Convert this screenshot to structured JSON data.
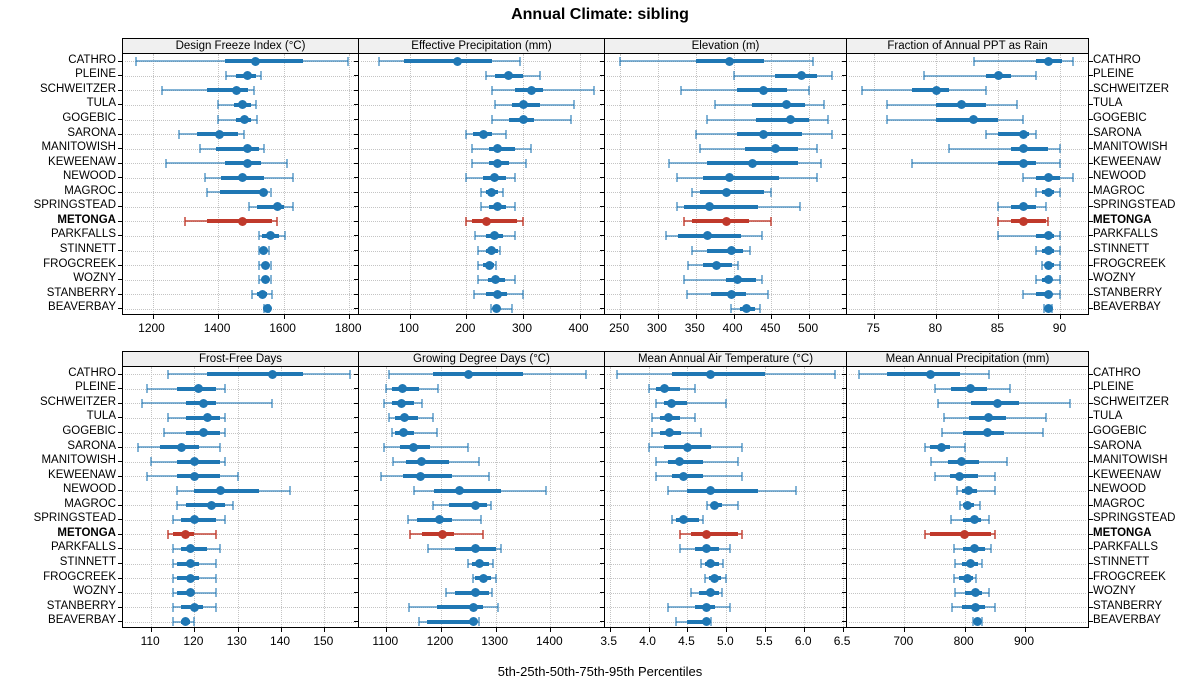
{
  "title": "Annual Climate: sibling",
  "footer": "5th-25th-50th-75th-95th Percentiles",
  "colors": {
    "normal": "#1f77b4",
    "normal_light": "rgba(31,119,180,0.55)",
    "highlight": "#c0392b",
    "highlight_light": "rgba(192,57,43,0.7)",
    "header_bg": "#f0f0f0",
    "grid": "#c4c4c4",
    "border": "#000000"
  },
  "highlight_site": "METONGA",
  "sites": [
    "CATHRO",
    "PLEINE",
    "SCHWEITZER",
    "TULA",
    "GOGEBIC",
    "SARONA",
    "MANITOWISH",
    "KEWEENAW",
    "NEWOOD",
    "MAGROC",
    "SPRINGSTEAD",
    "METONGA",
    "PARKFALLS",
    "STINNETT",
    "FROGCREEK",
    "WOZNY",
    "STANBERRY",
    "BEAVERBAY"
  ],
  "chart_data": [
    {
      "type": "dot-interval",
      "title": "Design Freeze Index (°C)",
      "xlim": [
        1110,
        1830
      ],
      "ticks": [
        {
          "v": 1200,
          "label": "1200"
        },
        {
          "v": 1400,
          "label": "1400"
        },
        {
          "v": 1600,
          "label": "1600"
        },
        {
          "v": 1800,
          "label": "1800"
        }
      ],
      "percentiles": [
        5,
        25,
        50,
        75,
        95
      ],
      "values": [
        [
          1150,
          1420,
          1515,
          1660,
          1795
        ],
        [
          1425,
          1455,
          1490,
          1515,
          1530
        ],
        [
          1230,
          1365,
          1455,
          1490,
          1510
        ],
        [
          1400,
          1450,
          1475,
          1500,
          1515
        ],
        [
          1400,
          1455,
          1480,
          1500,
          1520
        ],
        [
          1280,
          1335,
          1405,
          1460,
          1480
        ],
        [
          1345,
          1395,
          1490,
          1525,
          1540
        ],
        [
          1240,
          1420,
          1490,
          1530,
          1610
        ],
        [
          1360,
          1410,
          1475,
          1540,
          1630
        ],
        [
          1365,
          1405,
          1540,
          1550,
          1560
        ],
        [
          1495,
          1520,
          1580,
          1600,
          1630
        ],
        [
          1300,
          1365,
          1475,
          1565,
          1580
        ],
        [
          1525,
          1535,
          1560,
          1585,
          1605
        ],
        [
          1525,
          1535,
          1540,
          1550,
          1555
        ],
        [
          1525,
          1535,
          1545,
          1550,
          1560
        ],
        [
          1525,
          1535,
          1545,
          1550,
          1560
        ],
        [
          1505,
          1520,
          1535,
          1550,
          1565
        ],
        [
          1540,
          1545,
          1550,
          1553,
          1556
        ]
      ]
    },
    {
      "type": "dot-interval",
      "title": "Effective Precipitation (mm)",
      "xlim": [
        10,
        445
      ],
      "ticks": [
        {
          "v": 100,
          "label": "100"
        },
        {
          "v": 200,
          "label": "200"
        },
        {
          "v": 300,
          "label": "300"
        },
        {
          "v": 400,
          "label": "400"
        }
      ],
      "percentiles": [
        5,
        25,
        50,
        75,
        95
      ],
      "values": [
        [
          45,
          90,
          185,
          245,
          295
        ],
        [
          235,
          250,
          275,
          300,
          330
        ],
        [
          245,
          285,
          315,
          335,
          425
        ],
        [
          250,
          280,
          300,
          330,
          390
        ],
        [
          245,
          275,
          300,
          320,
          385
        ],
        [
          200,
          212,
          230,
          245,
          270
        ],
        [
          210,
          240,
          255,
          285,
          315
        ],
        [
          210,
          240,
          255,
          275,
          305
        ],
        [
          200,
          230,
          250,
          270,
          285
        ],
        [
          225,
          235,
          245,
          255,
          265
        ],
        [
          225,
          240,
          255,
          270,
          285
        ],
        [
          200,
          210,
          235,
          290,
          300
        ],
        [
          215,
          235,
          250,
          265,
          285
        ],
        [
          220,
          235,
          245,
          255,
          260
        ],
        [
          220,
          230,
          240,
          248,
          252
        ],
        [
          220,
          238,
          252,
          268,
          285
        ],
        [
          213,
          235,
          255,
          272,
          300
        ],
        [
          243,
          248,
          253,
          260,
          280
        ]
      ]
    },
    {
      "type": "dot-interval",
      "title": "Elevation (m)",
      "xlim": [
        230,
        550
      ],
      "ticks": [
        {
          "v": 250,
          "label": "250"
        },
        {
          "v": 300,
          "label": "300"
        },
        {
          "v": 350,
          "label": "350"
        },
        {
          "v": 400,
          "label": "400"
        },
        {
          "v": 450,
          "label": "450"
        },
        {
          "v": 500,
          "label": "500"
        }
      ],
      "percentiles": [
        5,
        25,
        50,
        75,
        95
      ],
      "values": [
        [
          250,
          350,
          395,
          440,
          505
        ],
        [
          400,
          455,
          490,
          510,
          530
        ],
        [
          330,
          405,
          440,
          470,
          500
        ],
        [
          375,
          425,
          470,
          495,
          520
        ],
        [
          365,
          430,
          475,
          500,
          525
        ],
        [
          350,
          405,
          440,
          490,
          530
        ],
        [
          355,
          415,
          455,
          485,
          510
        ],
        [
          315,
          365,
          425,
          485,
          515
        ],
        [
          325,
          360,
          395,
          460,
          510
        ],
        [
          345,
          355,
          390,
          440,
          450
        ],
        [
          325,
          335,
          368,
          432,
          488
        ],
        [
          335,
          345,
          390,
          420,
          450
        ],
        [
          310,
          327,
          366,
          410,
          437
        ],
        [
          345,
          365,
          397,
          412,
          422
        ],
        [
          340,
          360,
          378,
          398,
          406
        ],
        [
          335,
          390,
          405,
          430,
          438
        ],
        [
          338,
          370,
          397,
          416,
          445
        ],
        [
          397,
          408,
          417,
          428,
          435
        ]
      ]
    },
    {
      "type": "dot-interval",
      "title": "Fraction of Annual PPT as Rain",
      "xlim": [
        72.8,
        92.3
      ],
      "ticks": [
        {
          "v": 75,
          "label": "75"
        },
        {
          "v": 80,
          "label": "80"
        },
        {
          "v": 85,
          "label": "85"
        },
        {
          "v": 90,
          "label": "90"
        }
      ],
      "percentiles": [
        5,
        25,
        50,
        75,
        95
      ],
      "values": [
        [
          83,
          88,
          89,
          90.1,
          91
        ],
        [
          79,
          84,
          85,
          86,
          88
        ],
        [
          74,
          78,
          80,
          81,
          84
        ],
        [
          76,
          80,
          82,
          84,
          86.5
        ],
        [
          76,
          80,
          83,
          85,
          87
        ],
        [
          84,
          85,
          87,
          87.5,
          88
        ],
        [
          81,
          86,
          87,
          89,
          90
        ],
        [
          78,
          85,
          87,
          88,
          90
        ],
        [
          87,
          88,
          89,
          90,
          91
        ],
        [
          88,
          88.5,
          89,
          89.5,
          90
        ],
        [
          85,
          86,
          87,
          88,
          88.8
        ],
        [
          85,
          86,
          87,
          88.8,
          89
        ],
        [
          85,
          88,
          89,
          89.5,
          90
        ],
        [
          88,
          88.5,
          89,
          89.5,
          90
        ],
        [
          88.5,
          88.8,
          89,
          89.5,
          90
        ],
        [
          88,
          88.5,
          89,
          89.3,
          90
        ],
        [
          87,
          88,
          89,
          89.3,
          90
        ],
        [
          88.7,
          88.9,
          89,
          89.1,
          89.3
        ]
      ]
    },
    {
      "type": "dot-interval",
      "title": "Frost-Free Days",
      "xlim": [
        103.5,
        158
      ],
      "ticks": [
        {
          "v": 110,
          "label": "110"
        },
        {
          "v": 120,
          "label": "120"
        },
        {
          "v": 130,
          "label": "130"
        },
        {
          "v": 140,
          "label": "140"
        },
        {
          "v": 150,
          "label": "150"
        }
      ],
      "percentiles": [
        5,
        25,
        50,
        75,
        95
      ],
      "values": [
        [
          114,
          123,
          138,
          145,
          156
        ],
        [
          109,
          116,
          121,
          125,
          127
        ],
        [
          108,
          118,
          122,
          125,
          138
        ],
        [
          114,
          118,
          123,
          126,
          127
        ],
        [
          113,
          118,
          122,
          126,
          127
        ],
        [
          107,
          112,
          117,
          121,
          126
        ],
        [
          110,
          116,
          120,
          126,
          127
        ],
        [
          109,
          116,
          120,
          126,
          130
        ],
        [
          116,
          120,
          126,
          135,
          142
        ],
        [
          116,
          118,
          124,
          127,
          129
        ],
        [
          115,
          117,
          120,
          125,
          127
        ],
        [
          114,
          115,
          118,
          120,
          125
        ],
        [
          115,
          117,
          119,
          123,
          126
        ],
        [
          115,
          116,
          119,
          121,
          125
        ],
        [
          115,
          116,
          119,
          121,
          125
        ],
        [
          115,
          116,
          119,
          120,
          125
        ],
        [
          115,
          117,
          120,
          122,
          125
        ],
        [
          115,
          117,
          118,
          119,
          120
        ]
      ]
    },
    {
      "type": "dot-interval",
      "title": "Growing Degree Days (°C)",
      "xlim": [
        1050,
        1500
      ],
      "ticks": [
        {
          "v": 1100,
          "label": "1100"
        },
        {
          "v": 1200,
          "label": "1200"
        },
        {
          "v": 1300,
          "label": "1300"
        },
        {
          "v": 1400,
          "label": "1400"
        }
      ],
      "percentiles": [
        5,
        25,
        50,
        75,
        95
      ],
      "values": [
        [
          1105,
          1185,
          1250,
          1350,
          1465
        ],
        [
          1100,
          1110,
          1130,
          1160,
          1195
        ],
        [
          1095,
          1110,
          1128,
          1150,
          1165
        ],
        [
          1105,
          1115,
          1133,
          1158,
          1185
        ],
        [
          1110,
          1116,
          1132,
          1150,
          1193
        ],
        [
          1095,
          1125,
          1150,
          1180,
          1250
        ],
        [
          1112,
          1136,
          1165,
          1215,
          1270
        ],
        [
          1090,
          1130,
          1163,
          1220,
          1288
        ],
        [
          1150,
          1187,
          1233,
          1310,
          1392
        ],
        [
          1185,
          1215,
          1264,
          1285,
          1292
        ],
        [
          1140,
          1157,
          1197,
          1220,
          1273
        ],
        [
          1143,
          1166,
          1202,
          1223,
          1276
        ],
        [
          1176,
          1226,
          1263,
          1300,
          1310
        ],
        [
          1250,
          1257,
          1270,
          1287,
          1295
        ],
        [
          1258,
          1263,
          1278,
          1292,
          1300
        ],
        [
          1210,
          1226,
          1263,
          1288,
          1293
        ],
        [
          1142,
          1193,
          1260,
          1276,
          1304
        ],
        [
          1160,
          1175,
          1260,
          1265,
          1270
        ]
      ]
    },
    {
      "type": "dot-interval",
      "title": "Mean Annual Air Temperature (°C)",
      "xlim": [
        3.44,
        6.55
      ],
      "ticks": [
        {
          "v": 3.5,
          "label": "3.5"
        },
        {
          "v": 4.0,
          "label": "4.0"
        },
        {
          "v": 4.5,
          "label": "4.5"
        },
        {
          "v": 5.0,
          "label": "5.0"
        },
        {
          "v": 5.5,
          "label": "5.5"
        },
        {
          "v": 6.0,
          "label": "6.0"
        },
        {
          "v": 6.5,
          "label": "6.5"
        }
      ],
      "percentiles": [
        5,
        25,
        50,
        75,
        95
      ],
      "values": [
        [
          3.6,
          4.3,
          4.8,
          5.5,
          6.4
        ],
        [
          4.0,
          4.1,
          4.2,
          4.4,
          4.6
        ],
        [
          4.1,
          4.2,
          4.3,
          4.5,
          5.0
        ],
        [
          4.05,
          4.15,
          4.25,
          4.4,
          4.6
        ],
        [
          4.05,
          4.15,
          4.27,
          4.42,
          4.68
        ],
        [
          4.0,
          4.2,
          4.5,
          4.8,
          5.2
        ],
        [
          4.1,
          4.25,
          4.4,
          4.7,
          5.15
        ],
        [
          4.1,
          4.3,
          4.45,
          4.7,
          5.2
        ],
        [
          4.25,
          4.5,
          4.8,
          5.4,
          5.9
        ],
        [
          4.75,
          4.8,
          4.85,
          4.95,
          5.15
        ],
        [
          4.3,
          4.35,
          4.45,
          4.65,
          4.7
        ],
        [
          4.4,
          4.55,
          4.75,
          5.15,
          5.2
        ],
        [
          4.4,
          4.6,
          4.75,
          4.9,
          5.05
        ],
        [
          4.68,
          4.73,
          4.8,
          4.9,
          4.96
        ],
        [
          4.73,
          4.78,
          4.85,
          4.93,
          5.0
        ],
        [
          4.55,
          4.65,
          4.8,
          4.9,
          4.95
        ],
        [
          4.25,
          4.6,
          4.75,
          4.85,
          5.05
        ],
        [
          4.35,
          4.5,
          4.75,
          4.77,
          4.8
        ]
      ]
    },
    {
      "type": "dot-interval",
      "title": "Mean Annual Precipitation (mm)",
      "xlim": [
        605,
        1006
      ],
      "ticks": [
        {
          "v": 700,
          "label": "700"
        },
        {
          "v": 800,
          "label": "800"
        },
        {
          "v": 900,
          "label": "900"
        }
      ],
      "percentiles": [
        5,
        25,
        50,
        75,
        95
      ],
      "values": [
        [
          625,
          672,
          744,
          793,
          840
        ],
        [
          750,
          778,
          810,
          837,
          875
        ],
        [
          755,
          810,
          855,
          890,
          975
        ],
        [
          765,
          807,
          840,
          868,
          935
        ],
        [
          763,
          798,
          837,
          865,
          930
        ],
        [
          735,
          743,
          762,
          776,
          800
        ],
        [
          745,
          773,
          794,
          823,
          870
        ],
        [
          750,
          776,
          792,
          822,
          850
        ],
        [
          788,
          796,
          806,
          820,
          850
        ],
        [
          793,
          798,
          805,
          815,
          826
        ],
        [
          777,
          798,
          817,
          827,
          840
        ],
        [
          735,
          743,
          800,
          843,
          850
        ],
        [
          782,
          798,
          817,
          833,
          844
        ],
        [
          784,
          795,
          810,
          822,
          828
        ],
        [
          782,
          790,
          805,
          814,
          818
        ],
        [
          784,
          800,
          818,
          828,
          840
        ],
        [
          779,
          796,
          818,
          833,
          850
        ],
        [
          814,
          818,
          822,
          825,
          828
        ]
      ]
    }
  ]
}
